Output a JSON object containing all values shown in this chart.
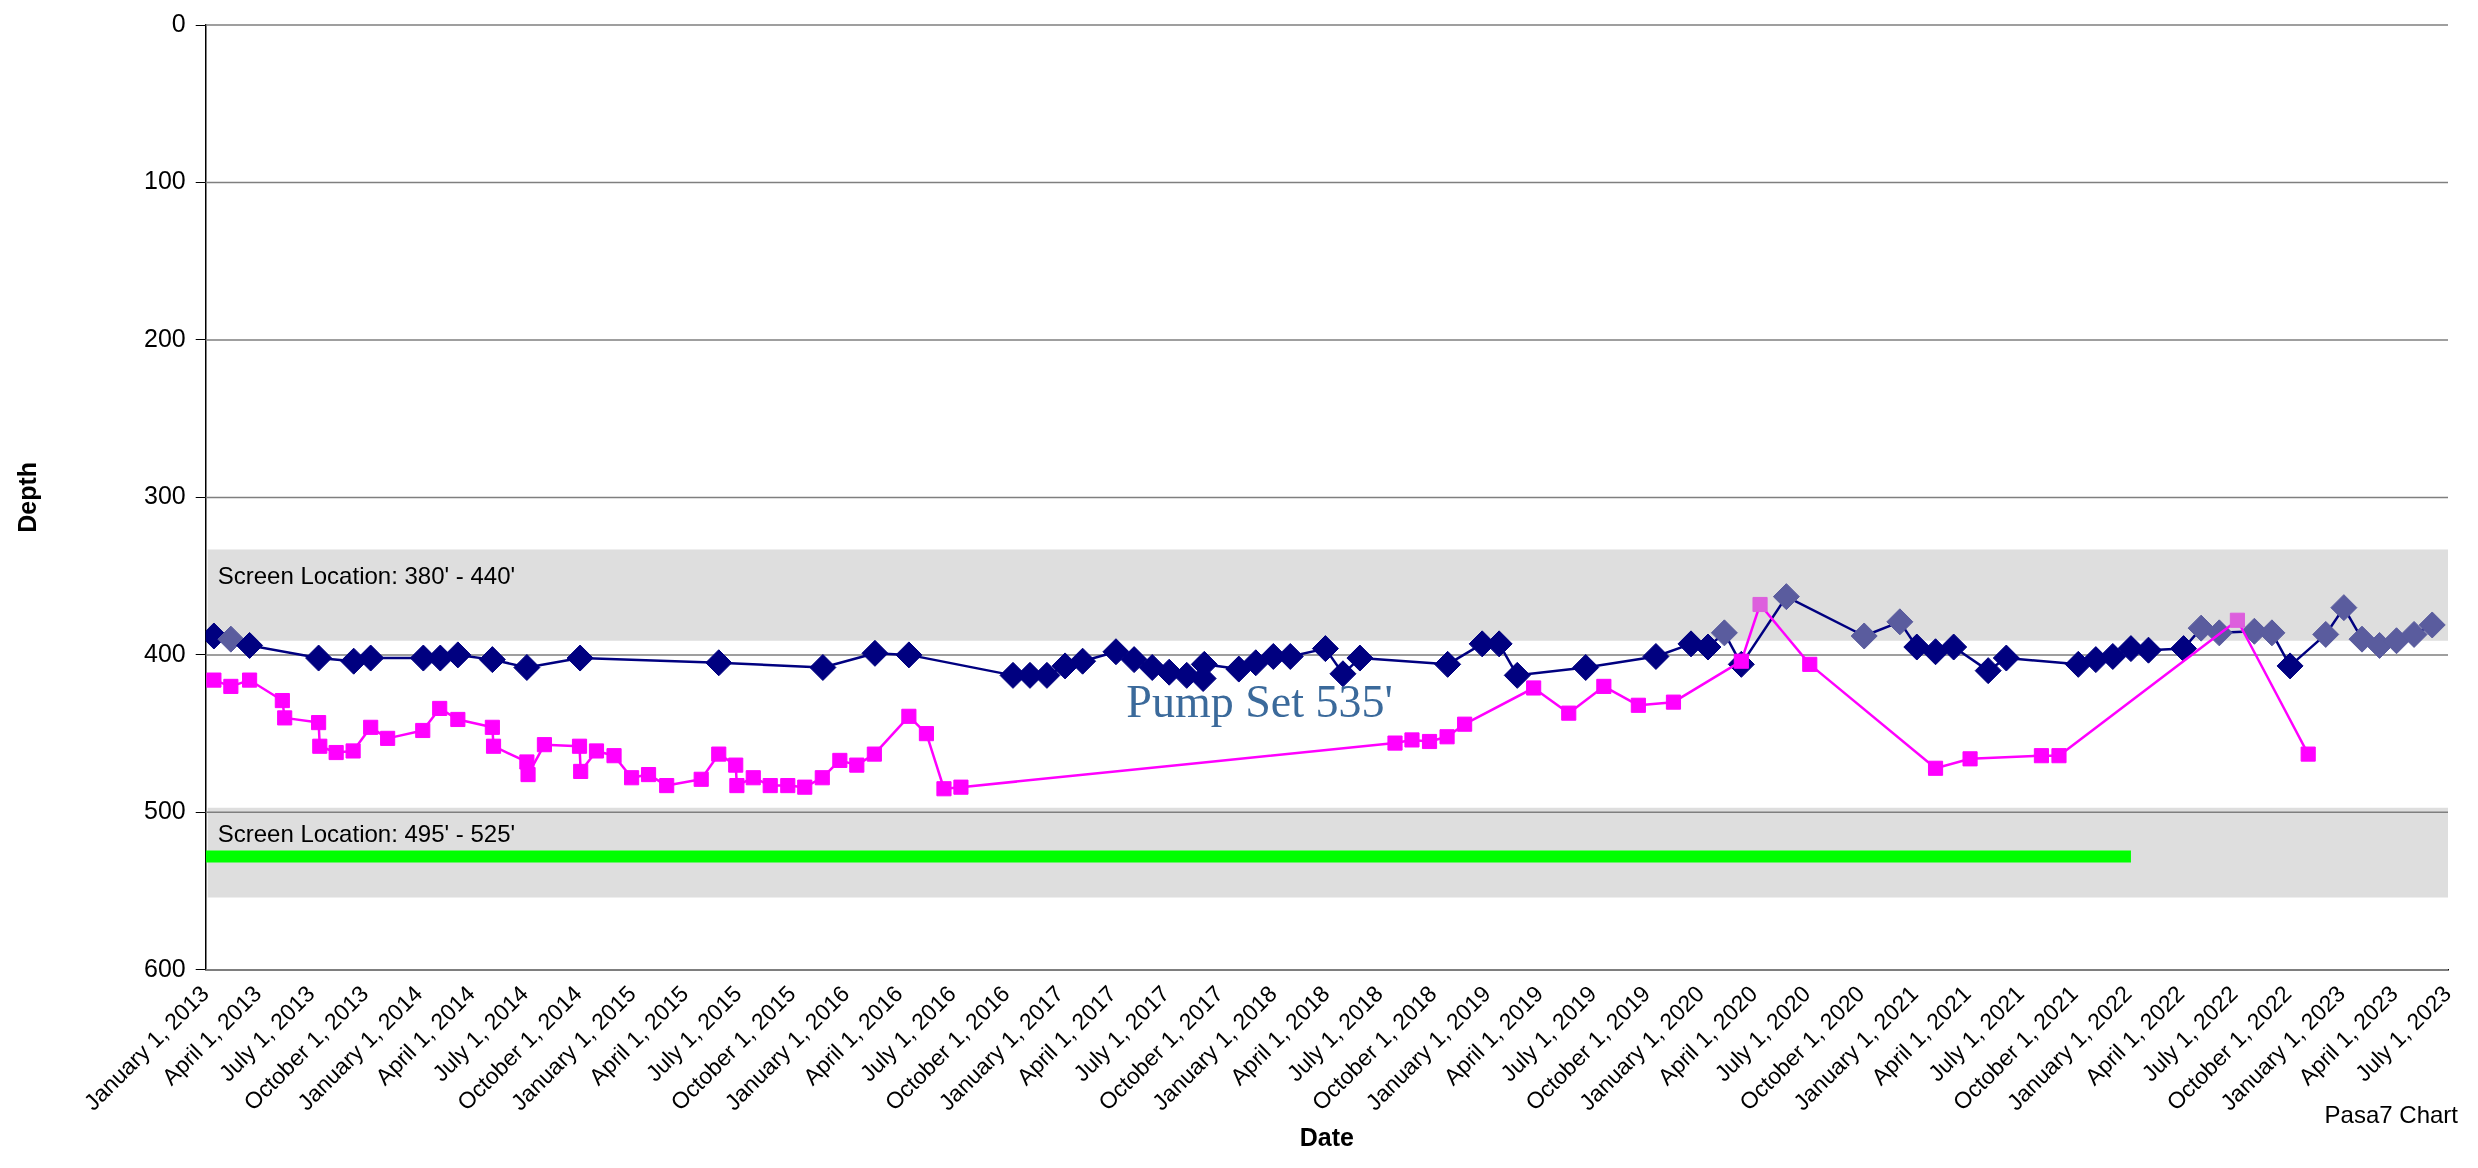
{
  "chart_data": {
    "type": "line",
    "xlabel": "Date",
    "ylabel": "Depth",
    "xlim": [
      "2013-01-01",
      "2023-07-01"
    ],
    "xticks": [
      {
        "value": "2013-01-01",
        "label": "January 1, 2013"
      },
      {
        "value": "2013-04-01",
        "label": "April 1, 2013"
      },
      {
        "value": "2013-07-01",
        "label": "July 1, 2013"
      },
      {
        "value": "2013-10-01",
        "label": "October 1, 2013"
      },
      {
        "value": "2014-01-01",
        "label": "January 1, 2014"
      },
      {
        "value": "2014-04-01",
        "label": "April 1, 2014"
      },
      {
        "value": "2014-07-01",
        "label": "July 1, 2014"
      },
      {
        "value": "2014-10-01",
        "label": "October 1, 2014"
      },
      {
        "value": "2015-01-01",
        "label": "January 1, 2015"
      },
      {
        "value": "2015-04-01",
        "label": "April 1, 2015"
      },
      {
        "value": "2015-07-01",
        "label": "July 1, 2015"
      },
      {
        "value": "2015-10-01",
        "label": "October 1, 2015"
      },
      {
        "value": "2016-01-01",
        "label": "January 1, 2016"
      },
      {
        "value": "2016-04-01",
        "label": "April 1, 2016"
      },
      {
        "value": "2016-07-01",
        "label": "July 1, 2016"
      },
      {
        "value": "2016-10-01",
        "label": "October 1, 2016"
      },
      {
        "value": "2017-01-01",
        "label": "January 1, 2017"
      },
      {
        "value": "2017-04-01",
        "label": "April 1, 2017"
      },
      {
        "value": "2017-07-01",
        "label": "July 1, 2017"
      },
      {
        "value": "2017-10-01",
        "label": "October 1, 2017"
      },
      {
        "value": "2018-01-01",
        "label": "January 1, 2018"
      },
      {
        "value": "2018-04-01",
        "label": "April 1, 2018"
      },
      {
        "value": "2018-07-01",
        "label": "July 1, 2018"
      },
      {
        "value": "2018-10-01",
        "label": "October 1, 2018"
      },
      {
        "value": "2019-01-01",
        "label": "January 1, 2019"
      },
      {
        "value": "2019-04-01",
        "label": "April 1, 2019"
      },
      {
        "value": "2019-07-01",
        "label": "July 1, 2019"
      },
      {
        "value": "2019-10-01",
        "label": "October 1, 2019"
      },
      {
        "value": "2020-01-01",
        "label": "January 1, 2020"
      },
      {
        "value": "2020-04-01",
        "label": "April 1, 2020"
      },
      {
        "value": "2020-07-01",
        "label": "July 1, 2020"
      },
      {
        "value": "2020-10-01",
        "label": "October 1, 2020"
      },
      {
        "value": "2021-01-01",
        "label": "January 1, 2021"
      },
      {
        "value": "2021-04-01",
        "label": "April 1, 2021"
      },
      {
        "value": "2021-07-01",
        "label": "July 1, 2021"
      },
      {
        "value": "2021-10-01",
        "label": "October 1, 2021"
      },
      {
        "value": "2022-01-01",
        "label": "January 1, 2022"
      },
      {
        "value": "2022-04-01",
        "label": "April 1, 2022"
      },
      {
        "value": "2022-07-01",
        "label": "July 1, 2022"
      },
      {
        "value": "2022-10-01",
        "label": "October 1, 2022"
      },
      {
        "value": "2023-01-01",
        "label": "January 1, 2023"
      },
      {
        "value": "2023-04-01",
        "label": "April 1, 2023"
      },
      {
        "value": "2023-07-01",
        "label": "July 1, 2023"
      }
    ],
    "ylim": [
      600,
      0
    ],
    "yticks": [
      0,
      100,
      200,
      300,
      400,
      500,
      600
    ],
    "grid": "y",
    "legend": false,
    "line_style": "solid",
    "bands": [
      {
        "axis": "y",
        "from": 333,
        "to": 391,
        "label": "Screen Location: 380' - 440'",
        "color": "#dedede"
      },
      {
        "axis": "y",
        "from": 497,
        "to": 554,
        "label": "Screen Location: 495' - 525'",
        "color": "#dedede"
      }
    ],
    "annotations": [
      "Pump Set 535'",
      "Pasa7 Chart"
    ],
    "series": [
      {
        "color": "#000080",
        "marker": "diamond",
        "x": [
          "2013-01-15",
          "2013-02-13",
          "2013-03-17",
          "2013-07-13",
          "2013-09-11",
          "2013-10-10",
          "2014-01-08",
          "2014-02-06",
          "2014-03-08",
          "2014-05-06",
          "2014-07-04",
          "2014-10-03",
          "2015-05-28",
          "2015-11-22",
          "2016-02-19",
          "2016-04-17",
          "2016-10-12",
          "2016-11-10",
          "2016-12-09",
          "2017-01-09",
          "2017-02-08",
          "2017-04-06",
          "2017-05-07",
          "2017-06-07",
          "2017-07-06",
          "2017-08-05",
          "2017-09-02",
          "2017-09-04",
          "2017-11-02",
          "2017-12-01",
          "2017-12-31",
          "2018-01-29",
          "2018-03-30",
          "2018-04-29",
          "2018-05-28",
          "2018-10-25",
          "2018-12-23",
          "2019-01-21",
          "2019-02-21",
          "2019-06-18",
          "2019-10-16",
          "2019-12-15",
          "2020-01-13",
          "2020-02-10",
          "2020-03-10",
          "2020-05-26",
          "2020-10-06",
          "2020-12-06",
          "2021-01-04",
          "2021-02-05",
          "2021-03-08",
          "2021-05-06",
          "2021-06-06",
          "2021-10-07",
          "2021-11-06",
          "2021-12-05",
          "2022-01-05",
          "2022-02-04",
          "2022-04-05",
          "2022-05-05",
          "2022-06-05",
          "2022-08-04",
          "2022-09-03",
          "2022-10-04",
          "2022-12-04",
          "2023-01-04",
          "2023-02-04",
          "2023-03-06",
          "2023-04-04",
          "2023-05-04",
          "2023-06-04"
        ],
        "values": [
          388,
          390,
          394,
          402,
          404,
          402,
          402,
          402,
          400,
          403,
          408,
          402,
          405,
          408,
          399,
          400,
          413,
          413,
          413,
          407,
          404,
          398,
          403,
          408,
          411,
          413,
          415,
          406,
          409,
          405,
          401,
          401,
          396,
          412,
          402,
          406,
          393,
          393,
          413,
          408,
          401,
          393,
          395,
          386,
          406,
          363,
          388,
          379,
          395,
          398,
          395,
          410,
          402,
          406,
          403,
          401,
          396,
          397,
          396,
          383,
          386,
          385,
          386,
          407,
          387,
          370,
          390,
          394,
          391,
          387,
          381
        ],
        "colors": [
          "#000080",
          "#5a5c9e",
          "#000080",
          "#000080",
          "#000080",
          "#000080",
          "#000080",
          "#000080",
          "#000080",
          "#000080",
          "#000080",
          "#000080",
          "#000080",
          "#000080",
          "#000080",
          "#000080",
          "#000080",
          "#000080",
          "#000080",
          "#000080",
          "#000080",
          "#000080",
          "#000080",
          "#000080",
          "#000080",
          "#000080",
          "#000080",
          "#000080",
          "#000080",
          "#000080",
          "#000080",
          "#000080",
          "#000080",
          "#000080",
          "#000080",
          "#000080",
          "#000080",
          "#000080",
          "#000080",
          "#000080",
          "#000080",
          "#000080",
          "#000080",
          "#5a5c9e",
          "#000080",
          "#5a5c9e",
          "#5a5c9e",
          "#5a5c9e",
          "#000080",
          "#000080",
          "#000080",
          "#000080",
          "#000080",
          "#000080",
          "#000080",
          "#000080",
          "#000080",
          "#000080",
          "#000080",
          "#5a5c9e",
          "#5a5c9e",
          "#5a5c9e",
          "#5a5c9e",
          "#000080",
          "#5a5c9e",
          "#5a5c9e",
          "#5a5c9e",
          "#5a5c9e",
          "#5a5c9e",
          "#5a5c9e",
          "#5a5c9e"
        ]
      },
      {
        "color": "#ff00ff",
        "marker": "square",
        "x": [
          "2013-01-15",
          "2013-02-13",
          "2013-03-17",
          "2013-05-12",
          "2013-05-16",
          "2013-07-13",
          "2013-07-15",
          "2013-08-12",
          "2013-09-10",
          "2013-10-10",
          "2013-11-08",
          "2014-01-07",
          "2014-02-05",
          "2014-03-08",
          "2014-05-06",
          "2014-05-08",
          "2014-07-04",
          "2014-07-06",
          "2014-08-03",
          "2014-10-02",
          "2014-10-04",
          "2014-10-31",
          "2014-11-30",
          "2014-12-30",
          "2015-01-28",
          "2015-02-28",
          "2015-04-28",
          "2015-05-28",
          "2015-06-26",
          "2015-06-28",
          "2015-07-26",
          "2015-08-24",
          "2015-09-23",
          "2015-10-22",
          "2015-11-21",
          "2015-12-21",
          "2016-01-19",
          "2016-02-18",
          "2016-04-17",
          "2016-05-17",
          "2016-06-16",
          "2016-07-15",
          "2018-07-27",
          "2018-08-25",
          "2018-09-24",
          "2018-10-24",
          "2018-11-23",
          "2019-03-21",
          "2019-05-20",
          "2019-07-19",
          "2019-09-16",
          "2019-11-15",
          "2020-03-10",
          "2020-04-11",
          "2020-07-05",
          "2021-02-05",
          "2021-04-05",
          "2021-08-05",
          "2021-09-04",
          "2022-07-06",
          "2022-11-04"
        ],
        "values": [
          416,
          420,
          416,
          429,
          440,
          443,
          458,
          462,
          461,
          446,
          453,
          448,
          434,
          441,
          446,
          458,
          468,
          476,
          457,
          458,
          474,
          461,
          464,
          478,
          476,
          483,
          479,
          463,
          470,
          483,
          478,
          483,
          483,
          484,
          478,
          467,
          470,
          463,
          439,
          450,
          485,
          484,
          456,
          454,
          455,
          452,
          444,
          421,
          437,
          420,
          432,
          430,
          404,
          368,
          406,
          472,
          466,
          464,
          464,
          378,
          463
        ],
        "colors": [
          "#ff00ff",
          "#ff00ff",
          "#ff00ff",
          "#ff00ff",
          "#ff00ff",
          "#ff00ff",
          "#ff00ff",
          "#ff00ff",
          "#ff00ff",
          "#ff00ff",
          "#ff00ff",
          "#ff00ff",
          "#ff00ff",
          "#ff00ff",
          "#ff00ff",
          "#ff00ff",
          "#ff00ff",
          "#ff00ff",
          "#ff00ff",
          "#ff00ff",
          "#ff00ff",
          "#ff00ff",
          "#ff00ff",
          "#ff00ff",
          "#ff00ff",
          "#ff00ff",
          "#ff00ff",
          "#ff00ff",
          "#ff00ff",
          "#ff00ff",
          "#ff00ff",
          "#ff00ff",
          "#ff00ff",
          "#ff00ff",
          "#ff00ff",
          "#ff00ff",
          "#ff00ff",
          "#ff00ff",
          "#ff00ff",
          "#ff00ff",
          "#ff00ff",
          "#ff00ff",
          "#ff00ff",
          "#ff00ff",
          "#ff00ff",
          "#ff00ff",
          "#ff00ff",
          "#ff00ff",
          "#ff00ff",
          "#ff00ff",
          "#ff00ff",
          "#ff00ff",
          "#ff00ff",
          "#dd5fdd",
          "#ff00ff",
          "#ff00ff",
          "#ff00ff",
          "#ff00ff",
          "#ff00ff",
          "#dd5fdd",
          "#ff00ff"
        ]
      },
      {
        "color": "#00ff00",
        "marker": "none",
        "x": [
          "2013-01-01",
          "2022-01-05"
        ],
        "values": [
          528,
          528
        ]
      }
    ]
  }
}
